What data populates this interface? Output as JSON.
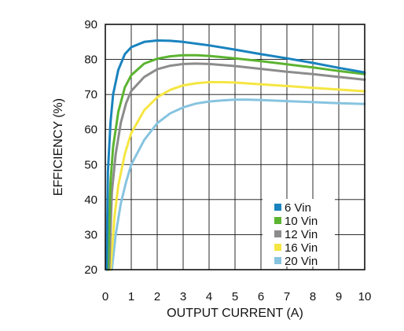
{
  "chart_data": {
    "type": "line",
    "title": "",
    "xlabel": "OUTPUT CURRENT (A)",
    "ylabel": "EFFICIENCY (%)",
    "xlim": [
      0,
      10
    ],
    "ylim": [
      20,
      90
    ],
    "x_ticks": [
      "0",
      "1",
      "2",
      "3",
      "4",
      "5",
      "6",
      "7",
      "8",
      "9",
      "10"
    ],
    "y_ticks": [
      "20",
      "30",
      "40",
      "50",
      "60",
      "70",
      "80",
      "90"
    ],
    "grid": true,
    "legend_position": "bottom-right",
    "series": [
      {
        "name": "6 Vin",
        "color": "#1a83bf",
        "points": [
          [
            0.05,
            20
          ],
          [
            0.1,
            48
          ],
          [
            0.2,
            62
          ],
          [
            0.3,
            70
          ],
          [
            0.5,
            77
          ],
          [
            0.75,
            81.5
          ],
          [
            1,
            83.5
          ],
          [
            1.5,
            85
          ],
          [
            2,
            85.4
          ],
          [
            2.5,
            85.3
          ],
          [
            3,
            85
          ],
          [
            4,
            84
          ],
          [
            5,
            82.8
          ],
          [
            6,
            81.5
          ],
          [
            7,
            80.3
          ],
          [
            8,
            79
          ],
          [
            9,
            77.6
          ],
          [
            10,
            76.3
          ]
        ]
      },
      {
        "name": "10 Vin",
        "color": "#5cb431",
        "points": [
          [
            0.1,
            20
          ],
          [
            0.2,
            45
          ],
          [
            0.3,
            55
          ],
          [
            0.5,
            65
          ],
          [
            0.75,
            72
          ],
          [
            1,
            75.5
          ],
          [
            1.5,
            78.8
          ],
          [
            2,
            80.2
          ],
          [
            2.5,
            80.9
          ],
          [
            3,
            81.2
          ],
          [
            3.5,
            81.2
          ],
          [
            4,
            81
          ],
          [
            5,
            80.3
          ],
          [
            6,
            79.5
          ],
          [
            7,
            78.6
          ],
          [
            8,
            77.7
          ],
          [
            9,
            76.7
          ],
          [
            10,
            75.8
          ]
        ]
      },
      {
        "name": "12 Vin",
        "color": "#8c8c8c",
        "points": [
          [
            0.15,
            20
          ],
          [
            0.25,
            42
          ],
          [
            0.4,
            53
          ],
          [
            0.6,
            62
          ],
          [
            0.8,
            67.5
          ],
          [
            1,
            71
          ],
          [
            1.5,
            75
          ],
          [
            2,
            77.2
          ],
          [
            2.5,
            78.2
          ],
          [
            3,
            78.7
          ],
          [
            3.5,
            78.8
          ],
          [
            4,
            78.7
          ],
          [
            5,
            78.1
          ],
          [
            6,
            77.3
          ],
          [
            7,
            76.5
          ],
          [
            8,
            75.8
          ],
          [
            9,
            75
          ],
          [
            10,
            74.2
          ]
        ]
      },
      {
        "name": "16 Vin",
        "color": "#f5e642",
        "points": [
          [
            0.2,
            20
          ],
          [
            0.35,
            35
          ],
          [
            0.5,
            44
          ],
          [
            0.75,
            53
          ],
          [
            1,
            59
          ],
          [
            1.5,
            65.5
          ],
          [
            2,
            69.2
          ],
          [
            2.5,
            71.3
          ],
          [
            3,
            72.6
          ],
          [
            3.5,
            73.2
          ],
          [
            4,
            73.5
          ],
          [
            4.5,
            73.5
          ],
          [
            5,
            73.4
          ],
          [
            6,
            72.9
          ],
          [
            7,
            72.4
          ],
          [
            8,
            71.9
          ],
          [
            9,
            71.4
          ],
          [
            10,
            70.9
          ]
        ]
      },
      {
        "name": "20 Vin",
        "color": "#87c4e0",
        "points": [
          [
            0.25,
            20
          ],
          [
            0.4,
            30
          ],
          [
            0.6,
            39
          ],
          [
            0.8,
            45
          ],
          [
            1,
            50
          ],
          [
            1.5,
            57
          ],
          [
            2,
            61.8
          ],
          [
            2.5,
            64.6
          ],
          [
            3,
            66.3
          ],
          [
            3.5,
            67.4
          ],
          [
            4,
            68
          ],
          [
            4.5,
            68.3
          ],
          [
            5,
            68.5
          ],
          [
            5.5,
            68.5
          ],
          [
            6,
            68.4
          ],
          [
            7,
            68.1
          ],
          [
            8,
            67.8
          ],
          [
            9,
            67.5
          ],
          [
            10,
            67.3
          ]
        ]
      }
    ]
  }
}
